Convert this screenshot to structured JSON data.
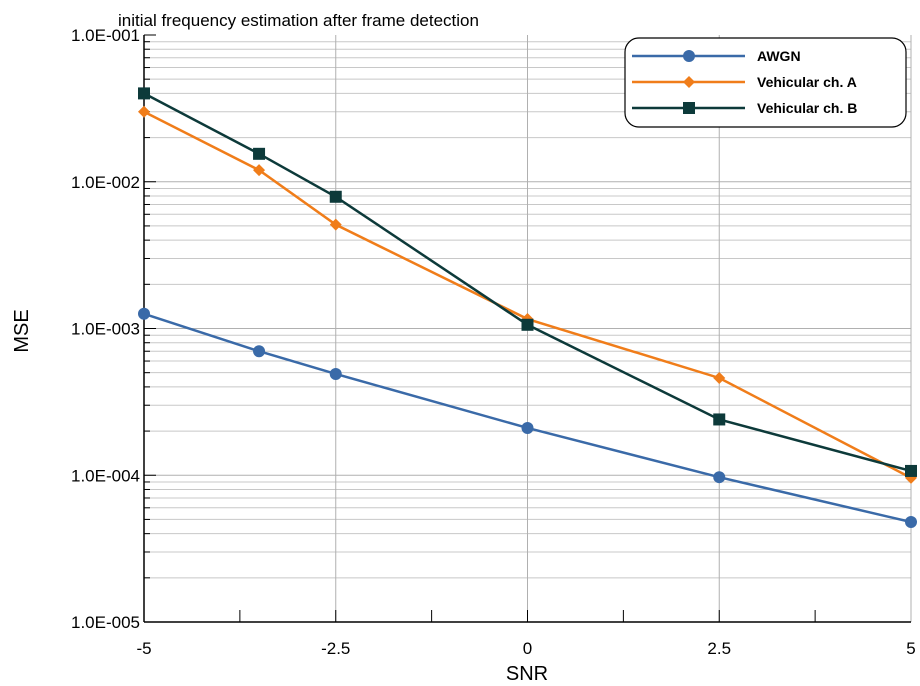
{
  "chart_data": {
    "type": "line",
    "title": "initial frequency estimation after frame detection",
    "xlabel": "SNR",
    "ylabel": "MSE",
    "x": [
      -5,
      -3.5,
      -2.5,
      0,
      2.5,
      5
    ],
    "xlim": [
      -5,
      5
    ],
    "ylim": [
      1e-05,
      0.1
    ],
    "yscale": "log",
    "grid": true,
    "legend_position": "top-right",
    "x_tick_labels": [
      "-5",
      "-2.5",
      "0",
      "2.5",
      "5"
    ],
    "y_tick_labels": [
      "1.0E-001",
      "1.0E-002",
      "1.0E-003",
      "1.0E-004",
      "1.0E-005"
    ],
    "series": [
      {
        "name": "AWGN",
        "color": "#3a6aa8",
        "marker": "circle",
        "values": [
          0.00126,
          0.0007,
          0.00049,
          0.00021,
          9.7e-05,
          4.8e-05
        ]
      },
      {
        "name": "Vehicular ch. A",
        "color": "#f07d1a",
        "marker": "diamond",
        "values": [
          0.03,
          0.012,
          0.0051,
          0.00116,
          0.00046,
          9.6e-05
        ]
      },
      {
        "name": "Vehicular ch. B",
        "color": "#0d3a3a",
        "marker": "square",
        "values": [
          0.04,
          0.0155,
          0.0079,
          0.00106,
          0.00024,
          0.000107
        ]
      }
    ]
  }
}
